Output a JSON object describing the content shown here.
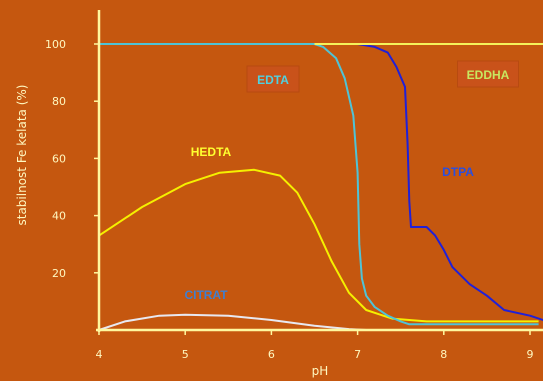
{
  "chart_data": {
    "type": "line",
    "title": "",
    "xlabel": "pH",
    "ylabel": "stabilnost  Fe kelata  (%)",
    "xlim": [
      4,
      9
    ],
    "ylim": [
      0,
      100
    ],
    "x_ticks": [
      4,
      5,
      6,
      7,
      8,
      9
    ],
    "y_ticks": [
      20,
      40,
      60,
      80,
      100
    ],
    "grid": false,
    "legend": "none (series labels placed directly on the plot)",
    "colors": {
      "background": "#c5570f",
      "axis": "#fff8a0",
      "tick_text": "#fff8c0"
    },
    "series": [
      {
        "name": "EDDHA",
        "color": "#f5f35a",
        "label_color": "#c8e860",
        "label_box": true,
        "x": [
          6.5,
          9.2
        ],
        "y": [
          100,
          100
        ]
      },
      {
        "name": "EDTA",
        "color": "#4fc3d6",
        "label_color": "#50d0e0",
        "label_box": true,
        "x": [
          4.0,
          6.5,
          6.6,
          6.75,
          6.85,
          6.95,
          7.0,
          7.02,
          7.05,
          7.1,
          7.2,
          7.35,
          7.5,
          7.6,
          7.8,
          8.5,
          9.1
        ],
        "y": [
          100,
          100,
          99,
          95,
          88,
          75,
          55,
          30,
          18,
          12,
          8,
          5,
          3,
          2,
          2,
          2,
          2
        ]
      },
      {
        "name": "DTPA",
        "color": "#2020d8",
        "label_color": "#2a4fe0",
        "label_box": false,
        "x": [
          6.5,
          7.0,
          7.2,
          7.35,
          7.45,
          7.55,
          7.58,
          7.6,
          7.62,
          7.65,
          7.8,
          7.9,
          8.0,
          8.1,
          8.3,
          8.5,
          8.7,
          9.0,
          9.2
        ],
        "y": [
          100,
          100,
          99,
          97,
          92,
          85,
          65,
          45,
          36,
          36,
          36,
          33,
          28,
          22,
          16,
          12,
          7,
          5,
          3
        ]
      },
      {
        "name": "HEDTA",
        "color": "#f5f000",
        "label_color": "#ffff30",
        "label_box": false,
        "x": [
          4.0,
          4.5,
          5.0,
          5.4,
          5.8,
          6.1,
          6.3,
          6.5,
          6.7,
          6.9,
          7.1,
          7.4,
          7.8,
          8.5,
          9.1
        ],
        "y": [
          33,
          43,
          51,
          55,
          56,
          54,
          48,
          37,
          24,
          13,
          7,
          4,
          3,
          3,
          3
        ]
      },
      {
        "name": "CITRAT",
        "color": "#e8e8f0",
        "label_color": "#3f7fd0",
        "label_box": false,
        "x": [
          4.0,
          4.3,
          4.7,
          5.0,
          5.5,
          6.0,
          6.5,
          6.9,
          7.1
        ],
        "y": [
          0,
          3,
          5,
          5.3,
          5,
          3.5,
          1.5,
          0.3,
          0
        ]
      }
    ]
  }
}
